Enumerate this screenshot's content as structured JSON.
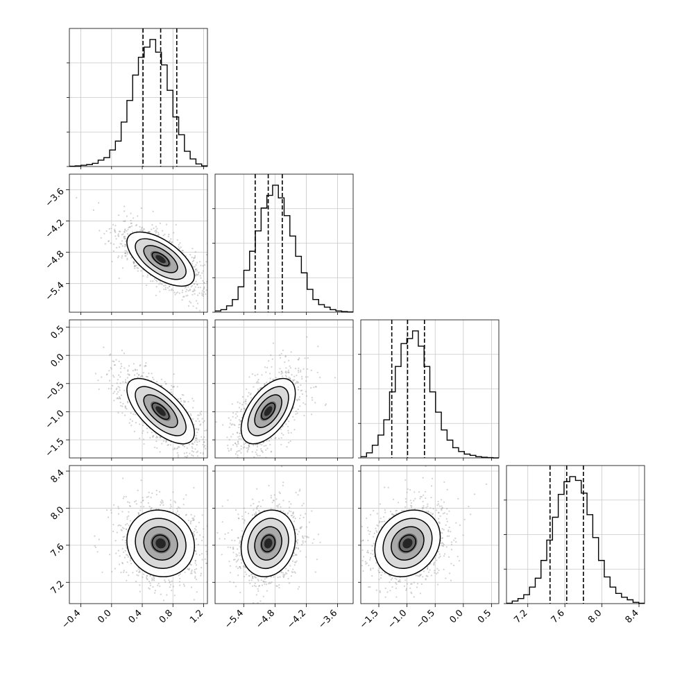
{
  "chart_data": {
    "type": "corner",
    "grid": true,
    "parameters": [
      {
        "ticks": [
          "−0.4",
          "0.0",
          "0.4",
          "0.8",
          "1.2"
        ],
        "range": [
          -0.55,
          1.25
        ],
        "median": 0.64,
        "q16": 0.41,
        "q84": 0.85
      },
      {
        "ticks": [
          "−5.4",
          "−4.8",
          "−4.2",
          "−3.6"
        ],
        "range": [
          -5.95,
          -3.3
        ],
        "median": -4.93,
        "q16": -5.18,
        "q84": -4.66
      },
      {
        "ticks": [
          "−1.5",
          "−1.0",
          "−0.5",
          "0.0",
          "0.5"
        ],
        "range": [
          -1.82,
          0.63
        ],
        "median": -0.99,
        "q16": -1.27,
        "q84": -0.69
      },
      {
        "ticks": [
          "7.2",
          "7.6",
          "8.0",
          "8.4"
        ],
        "range": [
          6.97,
          8.46
        ],
        "median": 7.62,
        "q16": 7.44,
        "q84": 7.8
      }
    ],
    "histograms": [
      [
        0.002,
        0.005,
        0.01,
        0.015,
        0.025,
        0.05,
        0.07,
        0.13,
        0.2,
        0.35,
        0.52,
        0.72,
        0.86,
        0.94,
        1.0,
        0.9,
        0.8,
        0.6,
        0.39,
        0.25,
        0.12,
        0.06,
        0.02,
        0.005
      ],
      [
        0.01,
        0.02,
        0.05,
        0.1,
        0.2,
        0.33,
        0.48,
        0.64,
        0.82,
        0.92,
        1.0,
        0.9,
        0.76,
        0.6,
        0.44,
        0.31,
        0.18,
        0.1,
        0.06,
        0.04,
        0.02,
        0.01,
        0.005,
        0.002
      ],
      [
        0.01,
        0.04,
        0.1,
        0.18,
        0.3,
        0.52,
        0.72,
        0.9,
        0.94,
        1.0,
        0.88,
        0.72,
        0.52,
        0.36,
        0.22,
        0.14,
        0.08,
        0.05,
        0.03,
        0.02,
        0.01,
        0.005,
        0.002,
        0.0
      ],
      [
        0.003,
        0.02,
        0.04,
        0.07,
        0.13,
        0.2,
        0.34,
        0.5,
        0.68,
        0.86,
        0.96,
        1.0,
        0.97,
        0.87,
        0.7,
        0.52,
        0.34,
        0.21,
        0.13,
        0.08,
        0.05,
        0.03,
        0.01,
        0.003
      ]
    ],
    "correlations": [
      [
        1.0,
        -0.62,
        -0.66,
        -0.08
      ],
      [
        -0.62,
        1.0,
        0.55,
        0.14
      ],
      [
        -0.66,
        0.55,
        1.0,
        0.2
      ],
      [
        -0.08,
        0.14,
        0.2,
        1.0
      ]
    ],
    "contour_levels_sigma": [
      0.5,
      1.0,
      1.5,
      2.0
    ]
  }
}
